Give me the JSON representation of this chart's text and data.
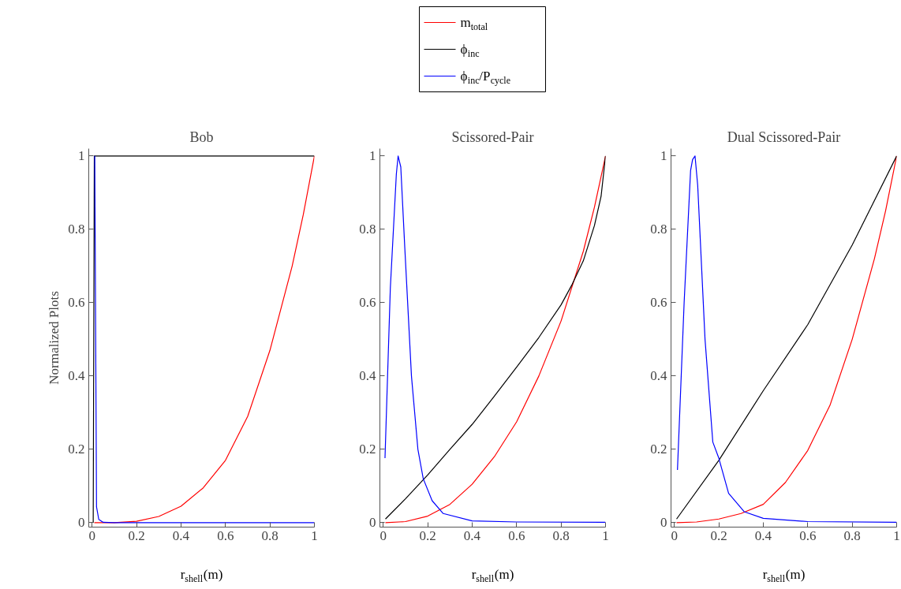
{
  "chart_data": [
    {
      "type": "line",
      "title": "Bob",
      "xlabel": "r$_{shell}$(m)",
      "ylabel": "Normalized Plots",
      "xlim": [
        -0.015,
        1.0
      ],
      "ylim": [
        -0.012,
        1.02
      ],
      "xticks": [
        0,
        0.2,
        0.4,
        0.6,
        0.8,
        1
      ],
      "yticks": [
        0,
        0.2,
        0.4,
        0.6,
        0.8,
        1
      ],
      "grid": false,
      "series": [
        {
          "color": "#ff0000",
          "x": [
            0.01,
            0.1,
            0.2,
            0.3,
            0.4,
            0.5,
            0.6,
            0.7,
            0.8,
            0.9,
            0.95,
            1
          ],
          "values": [
            0,
            0,
            0.004,
            0.017,
            0.045,
            0.095,
            0.17,
            0.29,
            0.47,
            0.7,
            0.84,
            1
          ]
        },
        {
          "color": "#000000",
          "x": [
            0.005,
            0.01,
            1
          ],
          "values": [
            0,
            1,
            1
          ]
        },
        {
          "color": "#0000ff",
          "x": [
            0.012,
            0.02,
            0.03,
            0.05,
            0.1,
            1
          ],
          "values": [
            1,
            0.043,
            0.009,
            0.001,
            0,
            0
          ]
        }
      ]
    },
    {
      "type": "line",
      "title": "Scissored-Pair",
      "xlabel": "r$_{shell}$(m)",
      "xlim": [
        -0.015,
        1.0
      ],
      "ylim": [
        -0.012,
        1.02
      ],
      "xticks": [
        0,
        0.2,
        0.4,
        0.6,
        0.8,
        1
      ],
      "yticks": [
        0,
        0.2,
        0.4,
        0.6,
        0.8,
        1
      ],
      "grid": false,
      "legend": "top",
      "series": [
        {
          "name": "m$_{total}$",
          "color": "#ff0000",
          "x": [
            0.01,
            0.1,
            0.2,
            0.3,
            0.4,
            0.5,
            0.6,
            0.7,
            0.8,
            0.9,
            0.95,
            1
          ],
          "values": [
            0,
            0.003,
            0.018,
            0.05,
            0.105,
            0.18,
            0.275,
            0.4,
            0.55,
            0.74,
            0.86,
            1
          ]
        },
        {
          "name": "ϕ$_{inc}$",
          "color": "#000000",
          "x": [
            0.01,
            0.1,
            0.2,
            0.3,
            0.4,
            0.5,
            0.6,
            0.7,
            0.8,
            0.85,
            0.9,
            0.95,
            0.98,
            1
          ],
          "values": [
            0.01,
            0.065,
            0.13,
            0.2,
            0.268,
            0.345,
            0.424,
            0.505,
            0.594,
            0.65,
            0.714,
            0.81,
            0.89,
            1
          ]
        },
        {
          "name": "ϕ$_{inc}$/P$_{cycle}$",
          "color": "#0000ff",
          "x": [
            0.008,
            0.032,
            0.059,
            0.067,
            0.079,
            0.097,
            0.127,
            0.156,
            0.18,
            0.22,
            0.27,
            0.4,
            0.6,
            1
          ],
          "values": [
            0.176,
            0.64,
            0.95,
            1,
            0.97,
            0.75,
            0.4,
            0.2,
            0.12,
            0.06,
            0.025,
            0.005,
            0.002,
            0.001
          ]
        }
      ]
    },
    {
      "type": "line",
      "title": "Dual Scissored-Pair",
      "xlabel": "r$_{shell}$(m)",
      "xlim": [
        -0.015,
        1.0
      ],
      "ylim": [
        -0.012,
        1.02
      ],
      "xticks": [
        0,
        0.2,
        0.4,
        0.6,
        0.8,
        1
      ],
      "yticks": [
        0,
        0.2,
        0.4,
        0.6,
        0.8,
        1
      ],
      "grid": false,
      "series": [
        {
          "color": "#ff0000",
          "x": [
            0.01,
            0.1,
            0.2,
            0.3,
            0.4,
            0.5,
            0.6,
            0.7,
            0.8,
            0.9,
            0.95,
            1
          ],
          "values": [
            0,
            0.002,
            0.01,
            0.025,
            0.05,
            0.11,
            0.197,
            0.32,
            0.5,
            0.72,
            0.85,
            1
          ]
        },
        {
          "color": "#000000",
          "x": [
            0.01,
            0.2,
            0.4,
            0.6,
            0.8,
            1
          ],
          "values": [
            0.01,
            0.17,
            0.36,
            0.54,
            0.757,
            1
          ]
        },
        {
          "color": "#0000ff",
          "x": [
            0.014,
            0.044,
            0.073,
            0.082,
            0.093,
            0.105,
            0.138,
            0.173,
            0.2,
            0.244,
            0.314,
            0.4,
            0.6,
            1
          ],
          "values": [
            0.144,
            0.6,
            0.96,
            0.99,
            1,
            0.92,
            0.5,
            0.22,
            0.176,
            0.08,
            0.03,
            0.012,
            0.003,
            0.001
          ]
        }
      ]
    }
  ]
}
